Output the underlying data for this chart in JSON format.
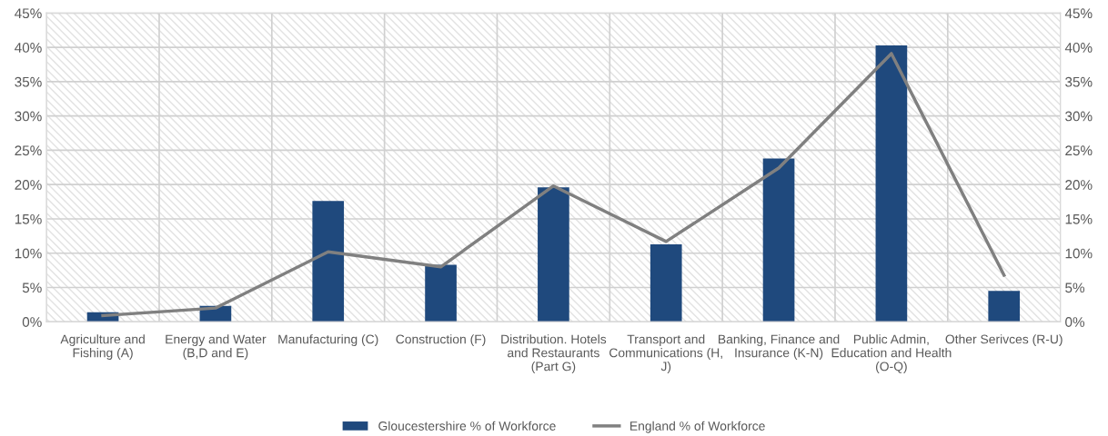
{
  "chart_data": {
    "type": "bar",
    "categories": [
      "Agriculture and Fishing (A)",
      "Energy and Water (B,D and E)",
      "Manufacturing (C)",
      "Construction (F)",
      "Distribution. Hotels and Restaurants (Part G)",
      "Transport and Communications (H, J)",
      "Banking, Finance and Insurance (K-N)",
      "Public Admin, Education and Health (O-Q)",
      "Other Serivces (R-U)"
    ],
    "series": [
      {
        "name": "Gloucestershire % of Workforce",
        "color": "#1f497d",
        "values": [
          1.4,
          2.3,
          17.6,
          8.3,
          19.6,
          11.3,
          23.8,
          40.3,
          4.5
        ]
      },
      {
        "name": "England % of Workforce",
        "type": "line",
        "color": "#808080",
        "values": [
          0.9,
          2.0,
          10.2,
          8.0,
          19.8,
          11.7,
          22.4,
          39.1,
          6.8
        ]
      }
    ],
    "ylim": [
      0,
      45
    ],
    "yticks": [
      {
        "value": 0,
        "label": "0%"
      },
      {
        "value": 5,
        "label": "5%"
      },
      {
        "value": 10,
        "label": "10%"
      },
      {
        "value": 15,
        "label": "15%"
      },
      {
        "value": 20,
        "label": "20%"
      },
      {
        "value": 25,
        "label": "25%"
      },
      {
        "value": 30,
        "label": "30%"
      },
      {
        "value": 35,
        "label": "35%"
      },
      {
        "value": 40,
        "label": "40%"
      },
      {
        "value": 45,
        "label": "45%"
      }
    ],
    "y2lim": [
      0,
      45
    ],
    "y2ticks": [
      {
        "value": 0,
        "label": "0%"
      },
      {
        "value": 5,
        "label": "5%"
      },
      {
        "value": 10,
        "label": "10%"
      },
      {
        "value": 15,
        "label": "15%"
      },
      {
        "value": 20,
        "label": "20%"
      },
      {
        "value": 25,
        "label": "25%"
      },
      {
        "value": 30,
        "label": "30%"
      },
      {
        "value": 35,
        "label": "35%"
      },
      {
        "value": 40,
        "label": "40%"
      },
      {
        "value": 45,
        "label": "45%"
      }
    ],
    "grid": true,
    "legend": "bottom",
    "marker": "none",
    "line_style": "solid"
  }
}
